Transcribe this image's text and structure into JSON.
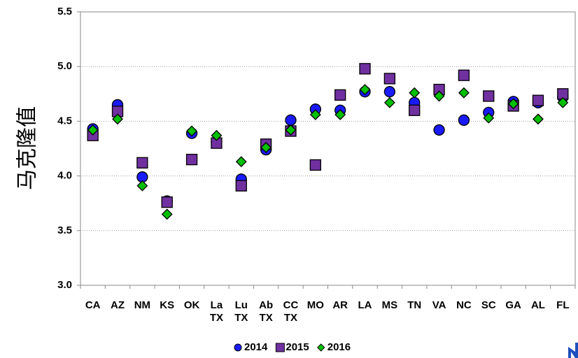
{
  "chart_data": {
    "type": "scatter",
    "ylabel": "马克隆值",
    "categories": [
      "CA",
      "AZ",
      "NM",
      "KS",
      "OK",
      "La\nTX",
      "Lu\nTX",
      "Ab\nTX",
      "CC\nTX",
      "MO",
      "AR",
      "LA",
      "MS",
      "TN",
      "VA",
      "NC",
      "SC",
      "GA",
      "AL",
      "FL"
    ],
    "series": [
      {
        "name": "2014",
        "color": "#1a1aff",
        "marker": "circle",
        "values": [
          4.43,
          4.65,
          3.99,
          3.77,
          4.39,
          4.31,
          3.97,
          4.24,
          4.51,
          4.61,
          4.6,
          4.77,
          4.77,
          4.67,
          4.42,
          4.51,
          4.58,
          4.68,
          4.67,
          4.72
        ]
      },
      {
        "name": "2015",
        "color": "#7030a0",
        "marker": "square",
        "values": [
          4.37,
          4.59,
          4.12,
          3.76,
          4.15,
          4.3,
          3.91,
          4.29,
          4.41,
          4.1,
          4.74,
          4.98,
          4.89,
          4.6,
          4.79,
          4.92,
          4.73,
          4.64,
          4.69,
          4.75
        ]
      },
      {
        "name": "2016",
        "color": "#00c000",
        "marker": "diamond",
        "values": [
          4.42,
          4.52,
          3.91,
          3.65,
          4.41,
          4.37,
          4.13,
          4.26,
          4.42,
          4.56,
          4.56,
          4.79,
          4.67,
          4.76,
          4.73,
          4.76,
          4.53,
          4.66,
          4.52,
          4.67
        ]
      }
    ],
    "ylim": [
      3,
      5.5
    ],
    "yticks": [
      {
        "value": 3,
        "label": "3.0"
      },
      3.5,
      {
        "value": 4,
        "label": "4.0"
      },
      4.5,
      {
        "value": 5,
        "label": "5.0"
      },
      5.5
    ],
    "grid": true,
    "legend": "bottom"
  }
}
